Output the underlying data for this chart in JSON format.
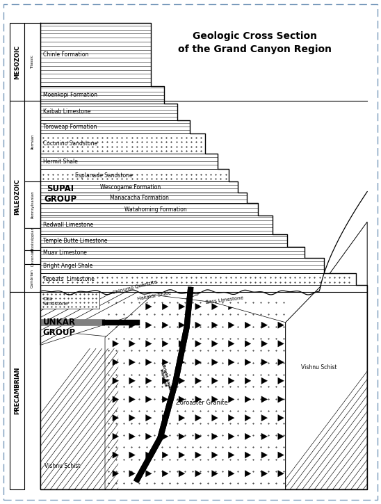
{
  "title_line1": "Geologic Cross Section",
  "title_line2": "of the Grand Canyon Region",
  "era_labels": [
    "MESOZOIC",
    "PALEOZOIC",
    "PRECAMBRIAN"
  ],
  "period_labels": [
    "Triassic",
    "Permian",
    "Pennsylvanian",
    "Mississippian",
    "Devonian",
    "Cambrian"
  ],
  "formation_labels": [
    "Chinle Formation",
    "Moenkopi Formation",
    "Kaibab Limestone",
    "Toroweap Formation",
    "Coconino Sandstone",
    "Hermit Shale",
    "Esplanade Sandstone",
    "Wescogame Formation",
    "Manacacha Formation",
    "Watahoming Formation",
    "Redwall Limestone",
    "Temple Butte Limestone",
    "Muav Limestone",
    "Bright Angel Shale",
    "Tepeats  Limestone"
  ],
  "title_fontsize": 10,
  "border_color": "#7799cc"
}
